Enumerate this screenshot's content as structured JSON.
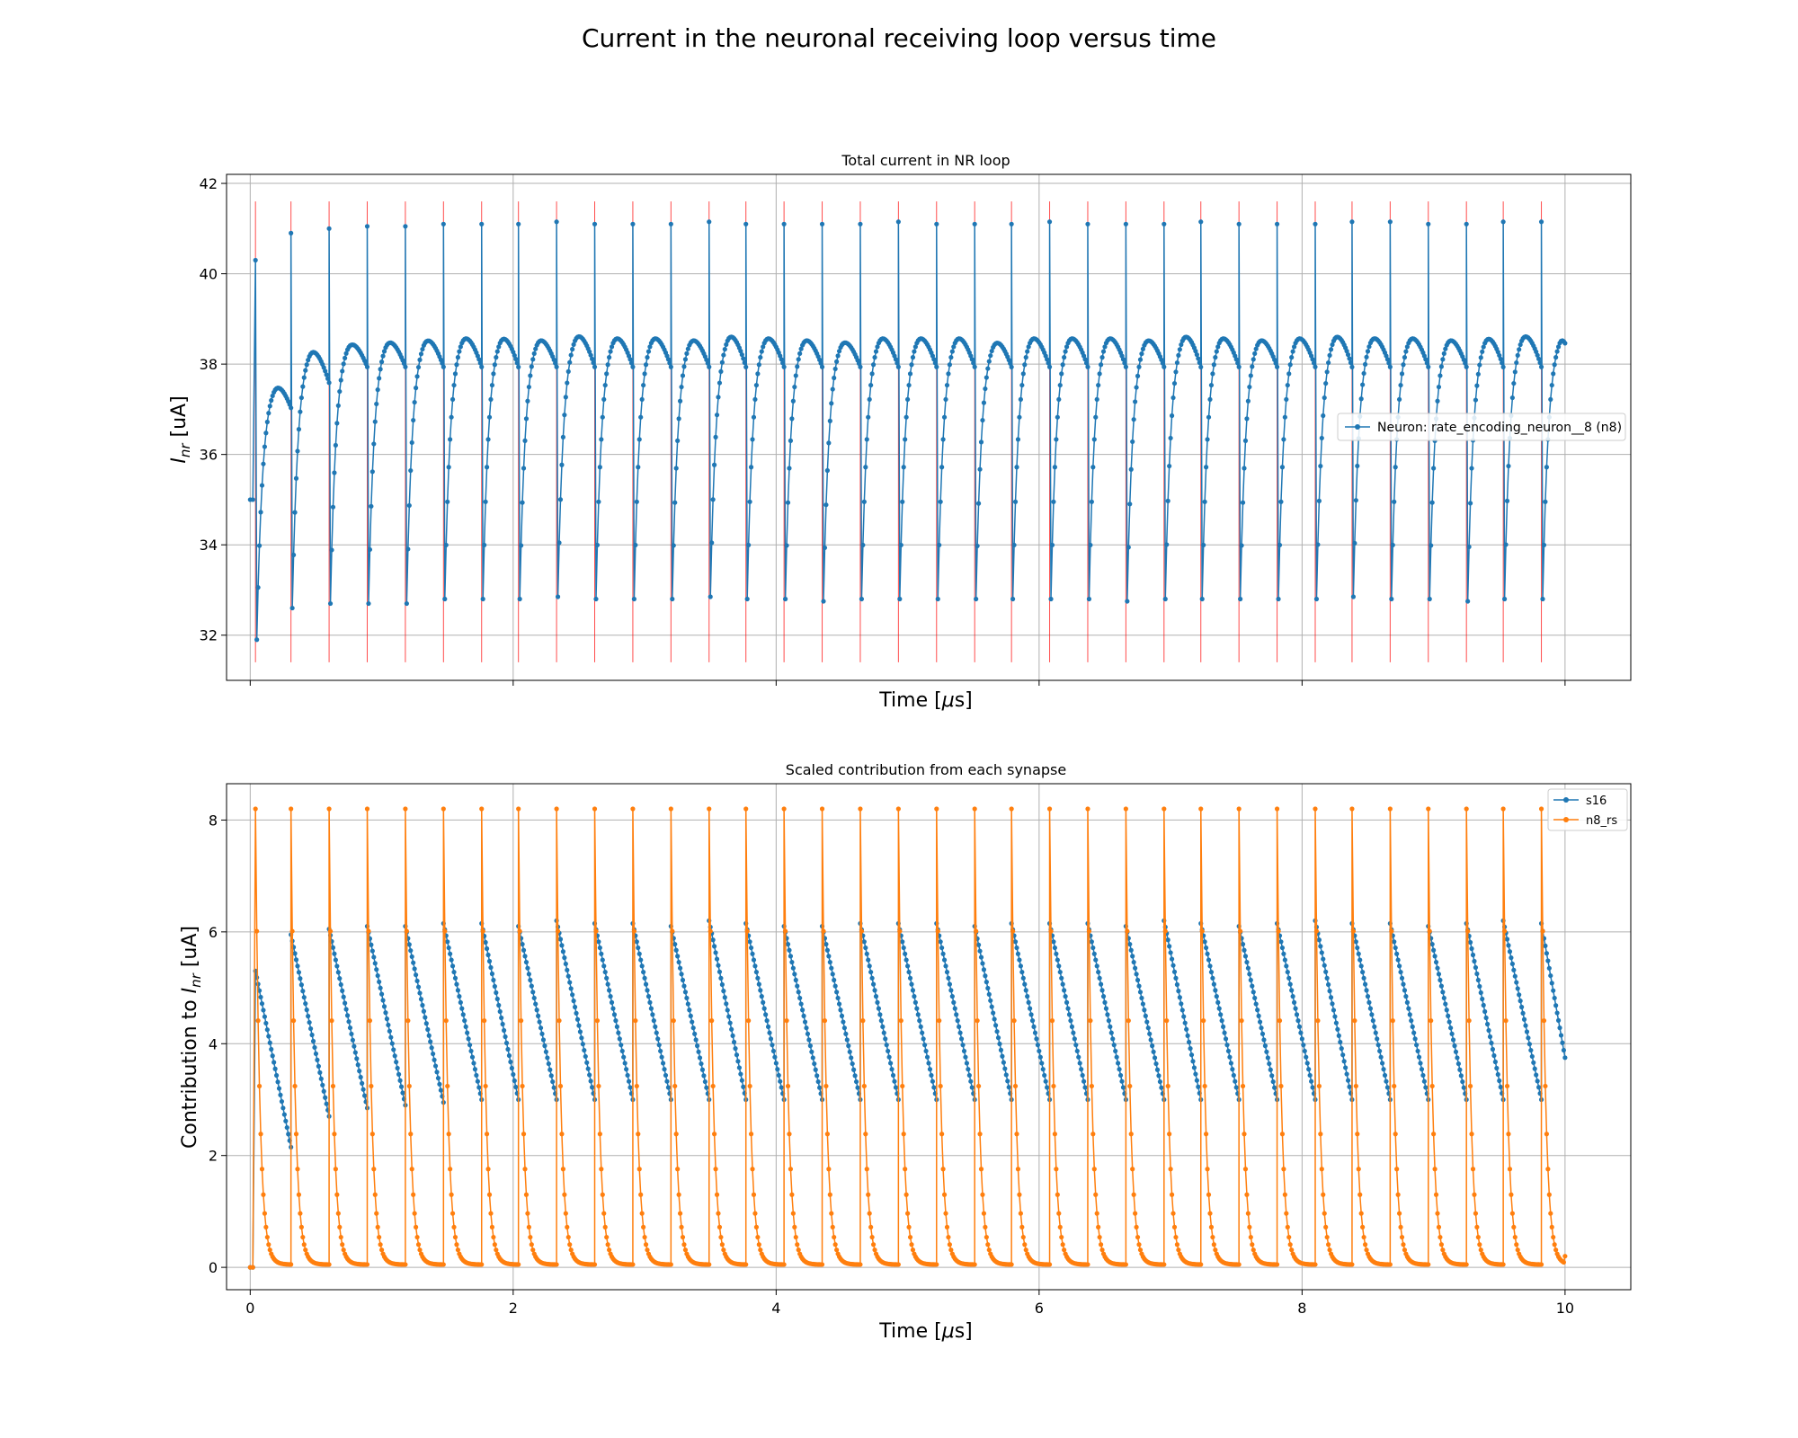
{
  "figure": {
    "title": "Current in the neuronal receiving loop versus time"
  },
  "colors": {
    "blue": "#1f77b4",
    "orange": "#ff7f0e",
    "spike_line": "#ff0000",
    "grid": "#b0b0b0",
    "axes": "#000000"
  },
  "chart_data": [
    {
      "type": "line",
      "title": "Total current in NR loop",
      "xlabel": "Time [μs]",
      "ylabel": "I_nr [uA]",
      "xlim": [
        -0.18,
        10.5
      ],
      "ylim": [
        31.0,
        42.2
      ],
      "xticks": [
        0,
        2,
        4,
        6,
        8,
        10
      ],
      "x_ticklabels_shown": false,
      "yticks": [
        32,
        34,
        36,
        38,
        40,
        42
      ],
      "ytick_labels": [
        "32",
        "34",
        "36",
        "38",
        "40",
        "42"
      ],
      "grid": true,
      "legend_position": "center-right",
      "series": [
        {
          "name": "Neuron: rate_encoding_neuron__8 (n8)",
          "color": "#1f77b4",
          "marker": "dot",
          "spike_times": [
            0.04,
            0.31,
            0.6,
            0.89,
            1.18,
            1.47,
            1.76,
            2.04,
            2.33,
            2.62,
            2.91,
            3.2,
            3.49,
            3.77,
            4.06,
            4.35,
            4.64,
            4.93,
            5.22,
            5.51,
            5.79,
            6.08,
            6.37,
            6.66,
            6.95,
            7.23,
            7.52,
            7.81,
            8.1,
            8.38,
            8.67,
            8.96,
            9.25,
            9.53,
            9.82
          ],
          "spike_peaks": [
            40.3,
            40.9,
            41.0,
            41.05,
            41.05,
            41.1,
            41.1,
            41.1,
            41.15,
            41.1,
            41.1,
            41.1,
            41.15,
            41.1,
            41.1,
            41.1,
            41.1,
            41.15,
            41.1,
            41.1,
            41.1,
            41.15,
            41.1,
            41.1,
            41.1,
            41.15,
            41.1,
            41.1,
            41.1,
            41.15,
            41.15,
            41.1,
            41.1,
            41.15,
            41.15
          ],
          "trough_after_spike": [
            31.9,
            32.6,
            32.7,
            32.7,
            32.7,
            32.8,
            32.8,
            32.8,
            32.85,
            32.8,
            32.8,
            32.8,
            32.85,
            32.8,
            32.8,
            32.75,
            32.8,
            32.8,
            32.8,
            32.8,
            32.8,
            32.8,
            32.8,
            32.75,
            32.8,
            32.8,
            32.8,
            32.8,
            32.8,
            32.85,
            32.8,
            32.8,
            32.75,
            32.8,
            32.8
          ],
          "hump_peaks": [
            37.7,
            38.5,
            38.65,
            38.7,
            38.75,
            38.8,
            38.8,
            38.75,
            38.85,
            38.8,
            38.8,
            38.75,
            38.85,
            38.8,
            38.75,
            38.7,
            38.8,
            38.8,
            38.8,
            38.7,
            38.8,
            38.8,
            38.8,
            38.75,
            38.85,
            38.8,
            38.75,
            38.8,
            38.85,
            38.8,
            38.8,
            38.75,
            38.8,
            38.85,
            38.8
          ],
          "start_value": 35.0,
          "end_value": 38.6,
          "x_end": 10.0
        }
      ],
      "spike_markers": {
        "times": [
          0.04,
          0.31,
          0.6,
          0.89,
          1.18,
          1.47,
          1.76,
          2.04,
          2.33,
          2.62,
          2.91,
          3.2,
          3.49,
          3.77,
          4.06,
          4.35,
          4.64,
          4.93,
          5.22,
          5.51,
          5.79,
          6.08,
          6.37,
          6.66,
          6.95,
          7.23,
          7.52,
          7.81,
          8.1,
          8.38,
          8.67,
          8.96,
          9.25,
          9.53,
          9.82
        ],
        "y_range": [
          31.4,
          41.6
        ]
      }
    },
    {
      "type": "line",
      "title": "Scaled contribution from each synapse",
      "xlabel": "Time [μs]",
      "ylabel": "Contribution to I_nr [uA]",
      "xlim": [
        -0.18,
        10.5
      ],
      "ylim": [
        -0.4,
        8.65
      ],
      "xticks": [
        0,
        2,
        4,
        6,
        8,
        10
      ],
      "xtick_labels": [
        "0",
        "2",
        "4",
        "6",
        "8",
        "10"
      ],
      "yticks": [
        0,
        2,
        4,
        6,
        8
      ],
      "ytick_labels": [
        "0",
        "2",
        "4",
        "6",
        "8"
      ],
      "grid": true,
      "legend_position": "top-right",
      "series": [
        {
          "name": "s16",
          "color": "#1f77b4",
          "marker": "dot",
          "start_value": 0.0,
          "reset_times": [
            0.04,
            0.31,
            0.6,
            0.89,
            1.18,
            1.47,
            1.76,
            2.04,
            2.33,
            2.62,
            2.91,
            3.2,
            3.49,
            3.77,
            4.06,
            4.35,
            4.64,
            4.93,
            5.22,
            5.51,
            5.79,
            6.08,
            6.37,
            6.66,
            6.95,
            7.23,
            7.52,
            7.81,
            8.1,
            8.38,
            8.67,
            8.96,
            9.25,
            9.53,
            9.82
          ],
          "peak_values": [
            5.3,
            5.95,
            6.05,
            6.1,
            6.1,
            6.15,
            6.15,
            6.1,
            6.2,
            6.15,
            6.15,
            6.1,
            6.2,
            6.15,
            6.1,
            6.1,
            6.15,
            6.15,
            6.15,
            6.1,
            6.15,
            6.15,
            6.15,
            6.1,
            6.2,
            6.15,
            6.1,
            6.15,
            6.2,
            6.15,
            6.15,
            6.1,
            6.15,
            6.2,
            6.15
          ],
          "min_values": [
            2.15,
            2.7,
            2.85,
            2.9,
            2.95,
            3.0,
            3.0,
            3.0,
            3.0,
            3.0,
            3.0,
            3.0,
            3.0,
            3.0,
            3.0,
            3.0,
            3.0,
            3.0,
            3.0,
            3.0,
            3.0,
            3.0,
            3.0,
            3.0,
            3.0,
            3.0,
            3.0,
            3.0,
            3.0,
            3.0,
            3.0,
            3.0,
            3.0,
            3.0
          ],
          "end_value": 3.75,
          "x_end": 10.0
        },
        {
          "name": "n8_rs",
          "color": "#ff7f0e",
          "marker": "dot",
          "start_value": 0.0,
          "spike_times": [
            0.04,
            0.31,
            0.6,
            0.89,
            1.18,
            1.47,
            1.76,
            2.04,
            2.33,
            2.62,
            2.91,
            3.2,
            3.49,
            3.77,
            4.06,
            4.35,
            4.64,
            4.93,
            5.22,
            5.51,
            5.79,
            6.08,
            6.37,
            6.66,
            6.95,
            7.23,
            7.52,
            7.81,
            8.1,
            8.38,
            8.67,
            8.96,
            9.25,
            9.53,
            9.82
          ],
          "peak_value": 8.2,
          "decays_to": 0.05,
          "end_value": 0.2,
          "x_end": 10.0
        }
      ]
    }
  ]
}
